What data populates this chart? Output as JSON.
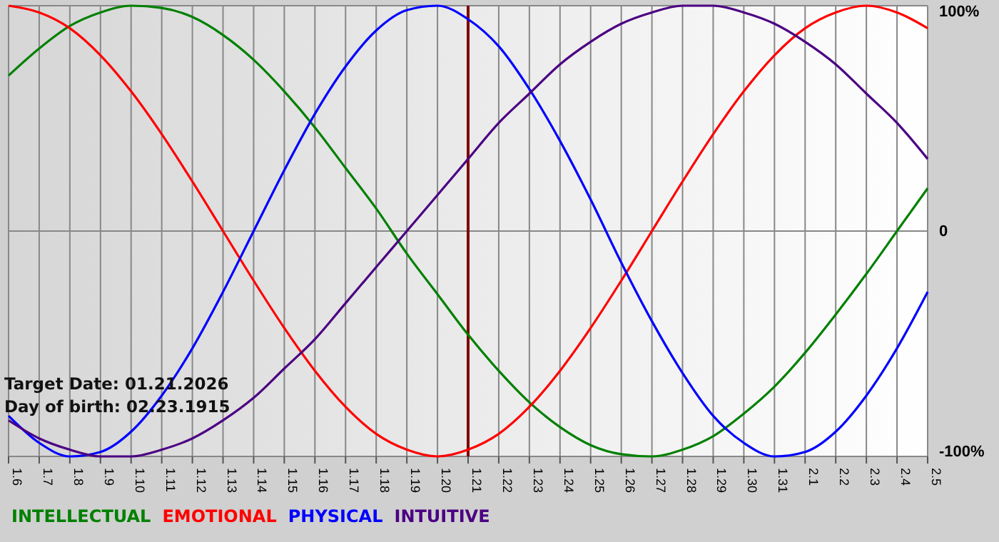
{
  "chart_data": {
    "type": "line",
    "categories": [
      "1.6",
      "1.7",
      "1.8",
      "1.9",
      "1.10",
      "1.11",
      "1.12",
      "1.13",
      "1.14",
      "1.15",
      "1.16",
      "1.17",
      "1.18",
      "1.19",
      "1.20",
      "1.21",
      "1.22",
      "1.23",
      "1.24",
      "1.25",
      "1.26",
      "1.27",
      "1.28",
      "1.29",
      "1.30",
      "1.31",
      "2.1",
      "2.2",
      "2.3",
      "2.4",
      "2.5"
    ],
    "series": [
      {
        "name": "INTELLECTUAL",
        "color": "#008000",
        "values": [
          69,
          81,
          91,
          97,
          100,
          99,
          95,
          87,
          76,
          62,
          46,
          28,
          10,
          -10,
          -28,
          -46,
          -62,
          -76,
          -87,
          -95,
          -99,
          -100,
          -97,
          -91,
          -81,
          -69,
          -54,
          -37,
          -19,
          0,
          19
        ]
      },
      {
        "name": "EMOTIONAL",
        "color": "#ff0000",
        "values": [
          100,
          97,
          90,
          78,
          62,
          43,
          22,
          0,
          -22,
          -43,
          -62,
          -78,
          -90,
          -97,
          -100,
          -97,
          -90,
          -78,
          -62,
          -43,
          -22,
          0,
          22,
          43,
          62,
          78,
          90,
          97,
          100,
          97,
          90
        ]
      },
      {
        "name": "PHYSICAL",
        "color": "#0000ff",
        "values": [
          -82,
          -94,
          -100,
          -98,
          -89,
          -73,
          -52,
          -27,
          0,
          27,
          52,
          73,
          89,
          98,
          100,
          94,
          82,
          63,
          40,
          14,
          -14,
          -40,
          -63,
          -82,
          -94,
          -100,
          -98,
          -89,
          -73,
          -52,
          -27
        ]
      },
      {
        "name": "INTUITIVE",
        "color": "#4b0082",
        "values": [
          -84,
          -92,
          -97,
          -100,
          -100,
          -97,
          -92,
          -84,
          -74,
          -61,
          -48,
          -32,
          -16,
          0,
          16,
          32,
          48,
          61,
          74,
          84,
          92,
          97,
          100,
          100,
          97,
          92,
          84,
          74,
          61,
          48,
          32
        ]
      }
    ],
    "ylim": [
      -100,
      100
    ],
    "yticks": [
      {
        "value": -100,
        "label": "-100%"
      },
      0,
      {
        "value": 100,
        "label": "100%"
      }
    ],
    "grid": true,
    "legend": "bottom",
    "ref_lines": [
      {
        "axis": "x",
        "value": "1.21",
        "color": "#800000"
      }
    ],
    "annotations": [
      "Target Date: 01.21.2026",
      "Day of birth: 02.23.1915"
    ]
  }
}
